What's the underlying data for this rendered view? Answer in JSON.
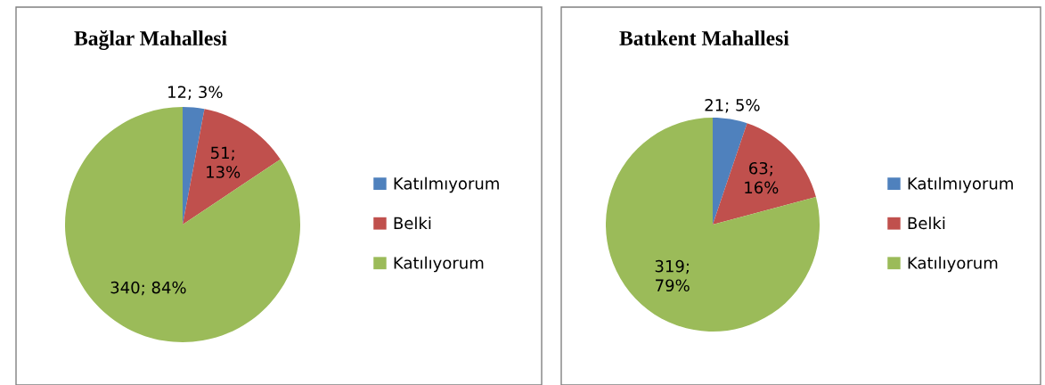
{
  "chart_data": [
    {
      "type": "pie",
      "title": "Bağlar Mahallesi",
      "categories": [
        "Katılmıyorum",
        "Belki",
        "Katılıyorum"
      ],
      "values": [
        12,
        51,
        340
      ],
      "colors": [
        "#4f81bd",
        "#c0504d",
        "#9bbb59"
      ],
      "value_labels": [
        "12; 3%",
        "51;\n13%",
        "340; 84%"
      ],
      "legend": "right"
    },
    {
      "type": "pie",
      "title": "Batıkent Mahallesi",
      "categories": [
        "Katılmıyorum",
        "Belki",
        "Katılıyorum"
      ],
      "values": [
        21,
        63,
        319
      ],
      "colors": [
        "#4f81bd",
        "#c0504d",
        "#9bbb59"
      ],
      "value_labels": [
        "21; 5%",
        "63;\n16%",
        "319;\n79%"
      ],
      "legend": "right"
    }
  ]
}
